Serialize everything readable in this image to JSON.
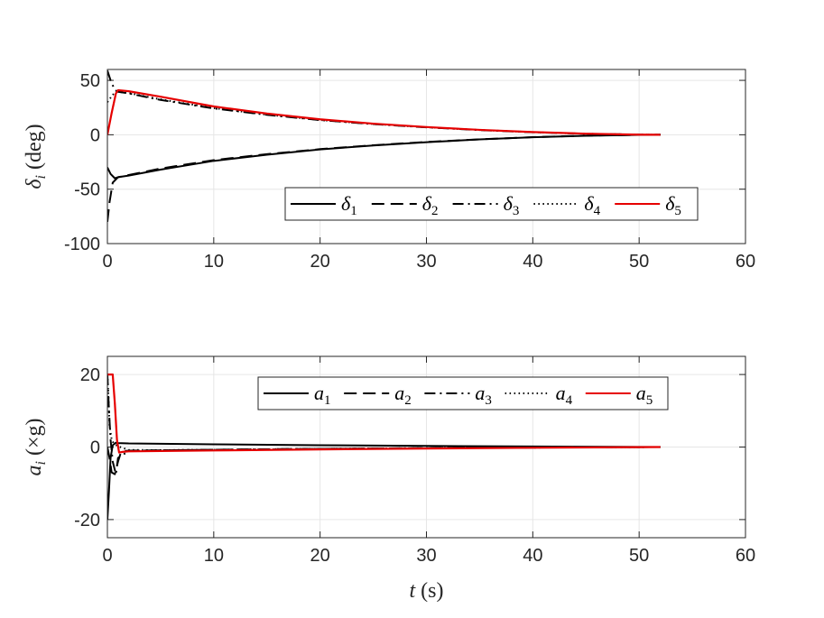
{
  "chart_data": [
    {
      "type": "line",
      "ylabel": "δ_i (deg)",
      "xlabel": "",
      "xlim": [
        0,
        60
      ],
      "ylim": [
        -100,
        60
      ],
      "xticks": [
        "0",
        "10",
        "20",
        "30",
        "40",
        "50",
        "60"
      ],
      "yticks": [
        "-100",
        "-50",
        "0",
        "50"
      ],
      "grid": true,
      "legend_position": "lower-right, horizontal",
      "series": [
        {
          "name": "δ1",
          "label_main": "δ",
          "label_sub": "1",
          "color": "#000000",
          "style": "solid",
          "x": [
            0,
            0.3,
            0.7,
            1,
            2,
            5,
            10,
            15,
            20,
            25,
            30,
            35,
            40,
            45,
            50,
            52
          ],
          "y": [
            -30,
            -36,
            -40,
            -39,
            -37.5,
            -32,
            -24,
            -18.3,
            -13.5,
            -9.8,
            -6.8,
            -4.3,
            -2.3,
            -0.9,
            -0.1,
            0
          ]
        },
        {
          "name": "δ2",
          "label_main": "δ",
          "label_sub": "2",
          "color": "#000000",
          "style": "dashed",
          "x": [
            0,
            0.2,
            0.5,
            1,
            2,
            5,
            10,
            15,
            20,
            25,
            30,
            35,
            40,
            45,
            50,
            52
          ],
          "y": [
            -80,
            -62,
            -44,
            -39,
            -37,
            -31,
            -23.3,
            -17.8,
            -13.2,
            -9.6,
            -6.6,
            -4.2,
            -2.2,
            -0.8,
            -0.1,
            0
          ]
        },
        {
          "name": "δ3",
          "label_main": "δ",
          "label_sub": "3",
          "color": "#000000",
          "style": "dashdot",
          "x": [
            0,
            0.3,
            0.7,
            1,
            2,
            5,
            10,
            15,
            20,
            25,
            30,
            35,
            40,
            45,
            50,
            52
          ],
          "y": [
            59,
            50,
            41,
            39.5,
            38,
            32,
            24.2,
            18.3,
            13.5,
            9.8,
            6.8,
            4.3,
            2.3,
            0.9,
            0.1,
            0
          ]
        },
        {
          "name": "δ4",
          "label_main": "δ",
          "label_sub": "4",
          "color": "#000000",
          "style": "dotted",
          "x": [
            0,
            0.3,
            0.7,
            1,
            2,
            5,
            10,
            15,
            20,
            25,
            30,
            35,
            40,
            45,
            50,
            52
          ],
          "y": [
            30,
            34,
            39,
            39.5,
            38.3,
            32.5,
            24.5,
            18.5,
            13.6,
            9.9,
            6.9,
            4.4,
            2.4,
            0.9,
            0.1,
            0
          ]
        },
        {
          "name": "δ5",
          "label_main": "δ",
          "label_sub": "5",
          "color": "#e60000",
          "style": "solid",
          "x": [
            0,
            0.4,
            0.8,
            1,
            2,
            5,
            10,
            15,
            20,
            25,
            30,
            35,
            40,
            45,
            50,
            52
          ],
          "y": [
            0,
            20,
            38,
            41,
            40,
            35,
            26,
            19.5,
            14.2,
            10.2,
            7.1,
            4.5,
            2.5,
            1,
            0.1,
            0
          ]
        }
      ]
    },
    {
      "type": "line",
      "ylabel": "a_i (×g)",
      "xlabel": "t (s)",
      "xlim": [
        0,
        60
      ],
      "ylim": [
        -25,
        25
      ],
      "xticks": [
        "0",
        "10",
        "20",
        "30",
        "40",
        "50",
        "60"
      ],
      "yticks": [
        "-20",
        "0",
        "20"
      ],
      "grid": true,
      "legend_position": "upper-right, horizontal",
      "series": [
        {
          "name": "a1",
          "label_main": "a",
          "label_sub": "1",
          "color": "#000000",
          "style": "solid",
          "x": [
            0,
            0.15,
            0.3,
            0.5,
            0.8,
            1,
            2,
            5,
            10,
            20,
            30,
            40,
            50,
            52
          ],
          "y": [
            -20,
            -12,
            -3,
            0.5,
            1.2,
            1.1,
            1,
            0.9,
            0.75,
            0.5,
            0.3,
            0.15,
            0.02,
            0
          ]
        },
        {
          "name": "a2",
          "label_main": "a",
          "label_sub": "2",
          "color": "#000000",
          "style": "dashed",
          "x": [
            0,
            0.2,
            0.4,
            0.7,
            1,
            1.3,
            2,
            5,
            10,
            20,
            30,
            40,
            50,
            52
          ],
          "y": [
            0,
            -3,
            -7,
            -7.5,
            -4,
            -1.2,
            -1,
            -0.9,
            -0.75,
            -0.5,
            -0.3,
            -0.15,
            -0.02,
            0
          ]
        },
        {
          "name": "a3",
          "label_main": "a",
          "label_sub": "3",
          "color": "#000000",
          "style": "dashdot",
          "x": [
            0,
            0.15,
            0.3,
            0.5,
            0.8,
            1,
            2,
            5,
            10,
            20,
            30,
            40,
            50,
            52
          ],
          "y": [
            20,
            10,
            2,
            -4,
            -7.5,
            -3,
            -1.1,
            -0.9,
            -0.75,
            -0.5,
            -0.3,
            -0.15,
            -0.02,
            0
          ]
        },
        {
          "name": "a4",
          "label_main": "a",
          "label_sub": "4",
          "color": "#000000",
          "style": "dotted",
          "x": [
            0,
            0.1,
            0.2,
            0.4,
            0.6,
            1,
            2,
            5,
            10,
            20,
            30,
            40,
            50,
            52
          ],
          "y": [
            20,
            14,
            6,
            2,
            1,
            0.2,
            -0.8,
            -0.85,
            -0.75,
            -0.5,
            -0.3,
            -0.15,
            -0.02,
            0
          ]
        },
        {
          "name": "a5",
          "label_main": "a",
          "label_sub": "5",
          "color": "#e60000",
          "style": "solid",
          "x": [
            0,
            0.5,
            0.7,
            0.9,
            1.1,
            1.5,
            2,
            5,
            10,
            20,
            30,
            40,
            50,
            52
          ],
          "y": [
            20,
            20,
            12,
            2,
            -1.5,
            -1.3,
            -1.2,
            -1.1,
            -0.95,
            -0.65,
            -0.4,
            -0.2,
            -0.03,
            0
          ]
        }
      ]
    }
  ]
}
